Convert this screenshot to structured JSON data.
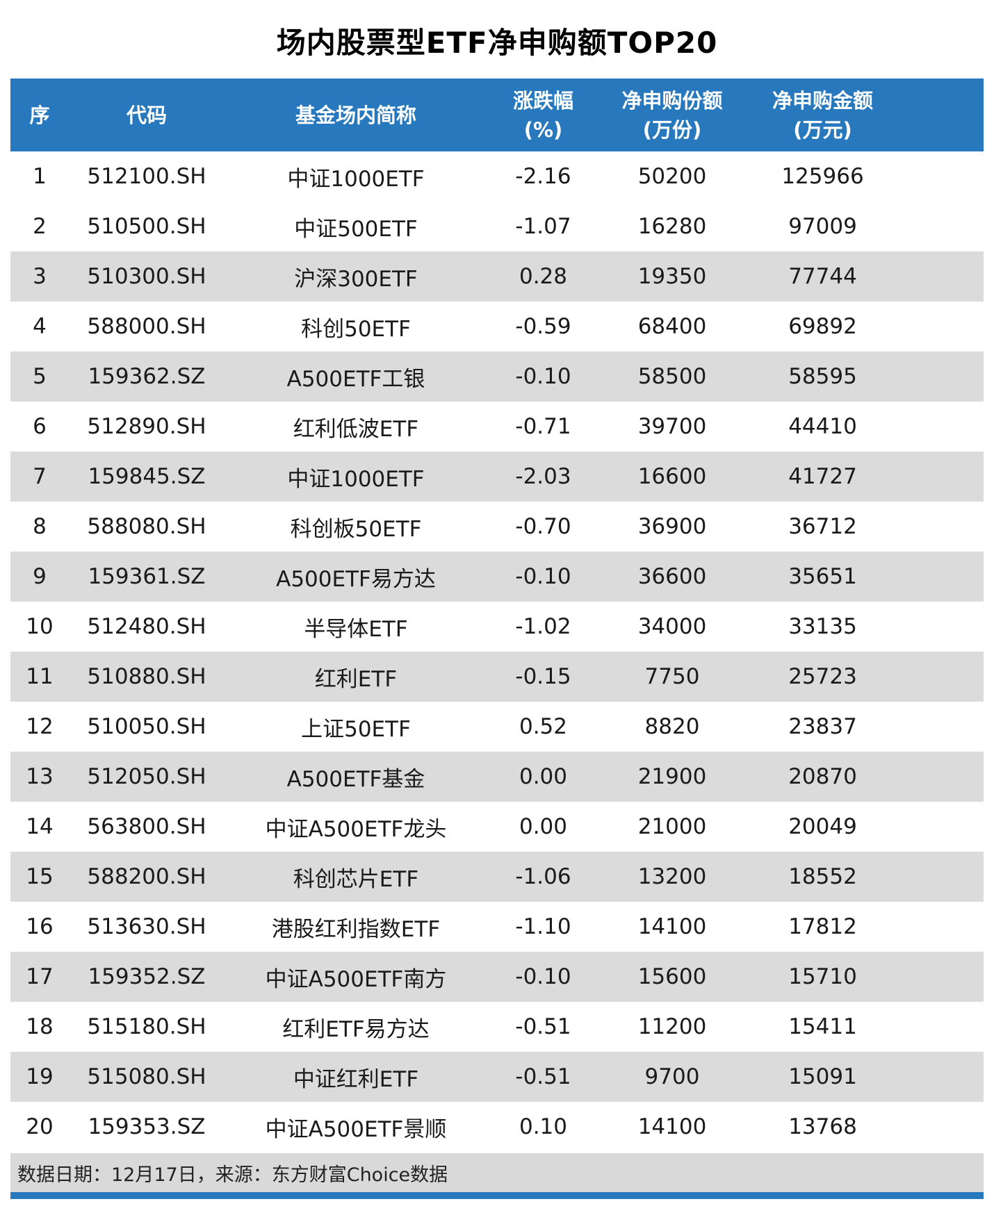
{
  "title": "场内股票型ETF净申购额TOP20",
  "colors": {
    "header_bg": "#2878BE",
    "banded_row_bg": "#DBDBDB",
    "footer_bg": "#D9D9D9",
    "accent_line": "#2878BE"
  },
  "table": {
    "headers": [
      {
        "label": "序",
        "sub": ""
      },
      {
        "label": "代码",
        "sub": ""
      },
      {
        "label": "基金场内简称",
        "sub": ""
      },
      {
        "label": "涨跌幅",
        "sub": "(%)"
      },
      {
        "label": "净申购份额",
        "sub": "(万份)"
      },
      {
        "label": "净申购金额",
        "sub": "(万元)"
      }
    ]
  },
  "footer": {
    "note": "数据日期：12月17日，来源：东方财富Choice数据"
  },
  "chart_data": {
    "type": "table",
    "title": "场内股票型ETF净申购额TOP20",
    "columns": [
      "序",
      "代码",
      "基金场内简称",
      "涨跌幅(%)",
      "净申购份额(万份)",
      "净申购金额(万元)"
    ],
    "rows": [
      [
        "1",
        "512100.SH",
        "中证1000ETF",
        "-2.16",
        "50200",
        "125966"
      ],
      [
        "2",
        "510500.SH",
        "中证500ETF",
        "-1.07",
        "16280",
        "97009"
      ],
      [
        "3",
        "510300.SH",
        "沪深300ETF",
        "0.28",
        "19350",
        "77744"
      ],
      [
        "4",
        "588000.SH",
        "科创50ETF",
        "-0.59",
        "68400",
        "69892"
      ],
      [
        "5",
        "159362.SZ",
        "A500ETF工银",
        "-0.10",
        "58500",
        "58595"
      ],
      [
        "6",
        "512890.SH",
        "红利低波ETF",
        "-0.71",
        "39700",
        "44410"
      ],
      [
        "7",
        "159845.SZ",
        "中证1000ETF",
        "-2.03",
        "16600",
        "41727"
      ],
      [
        "8",
        "588080.SH",
        "科创板50ETF",
        "-0.70",
        "36900",
        "36712"
      ],
      [
        "9",
        "159361.SZ",
        "A500ETF易方达",
        "-0.10",
        "36600",
        "35651"
      ],
      [
        "10",
        "512480.SH",
        "半导体ETF",
        "-1.02",
        "34000",
        "33135"
      ],
      [
        "11",
        "510880.SH",
        "红利ETF",
        "-0.15",
        "7750",
        "25723"
      ],
      [
        "12",
        "510050.SH",
        "上证50ETF",
        "0.52",
        "8820",
        "23837"
      ],
      [
        "13",
        "512050.SH",
        "A500ETF基金",
        "0.00",
        "21900",
        "20870"
      ],
      [
        "14",
        "563800.SH",
        "中证A500ETF龙头",
        "0.00",
        "21000",
        "20049"
      ],
      [
        "15",
        "588200.SH",
        "科创芯片ETF",
        "-1.06",
        "13200",
        "18552"
      ],
      [
        "16",
        "513630.SH",
        "港股红利指数ETF",
        "-1.10",
        "14100",
        "17812"
      ],
      [
        "17",
        "159352.SZ",
        "中证A500ETF南方",
        "-0.10",
        "15600",
        "15710"
      ],
      [
        "18",
        "515180.SH",
        "红利ETF易方达",
        "-0.51",
        "11200",
        "15411"
      ],
      [
        "19",
        "515080.SH",
        "中证红利ETF",
        "-0.51",
        "9700",
        "15091"
      ],
      [
        "20",
        "159353.SZ",
        "中证A500ETF景顺",
        "0.10",
        "14100",
        "13768"
      ]
    ],
    "footnote": "数据日期：12月17日，来源：东方财富Choice数据"
  }
}
